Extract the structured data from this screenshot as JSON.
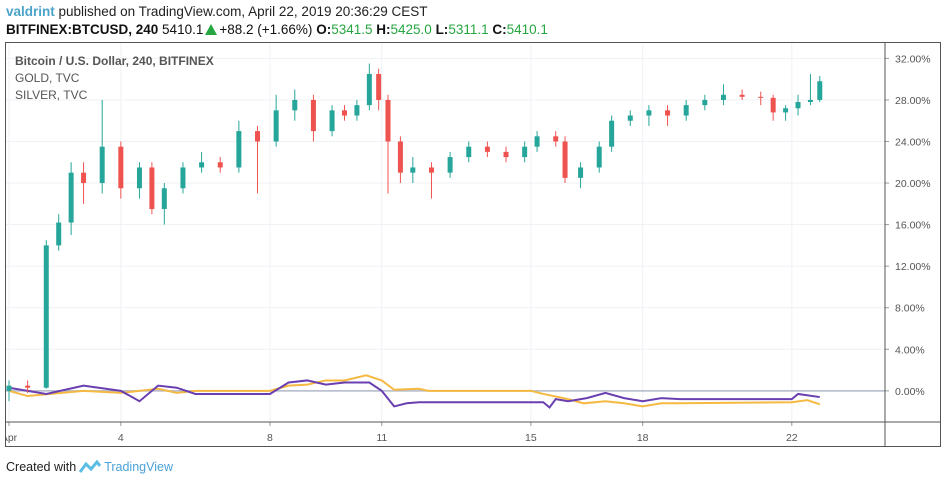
{
  "header": {
    "user": "valdrint",
    "published": "published on TradingView.com, April 22, 2019 20:36:29 CEST",
    "symbol": "BITFINEX:BTCUSD, 240",
    "last": "5410.1",
    "change": "+88.2 (+1.66%)",
    "o_label": "O:",
    "o": "5341.5",
    "h_label": "H:",
    "h": "5425.0",
    "l_label": "L:",
    "l": "5311.1",
    "c_label": "C:",
    "c": "5410.1"
  },
  "legend": {
    "main": "Bitcoin / U.S. Dollar, 240, BITFINEX",
    "s1": "GOLD, TVC",
    "s2": "SILVER, TVC"
  },
  "footer": {
    "created": "Created with",
    "brand": "TradingView"
  },
  "chart_data": {
    "type": "candlestick",
    "y_unit": "percent",
    "ylim": [
      -3,
      33
    ],
    "yticks": [
      "32.00%",
      "28.00%",
      "24.00%",
      "20.00%",
      "16.00%",
      "12.00%",
      "8.00%",
      "4.00%",
      "0.00%"
    ],
    "ytick_values": [
      32,
      28,
      24,
      20,
      16,
      12,
      8,
      4,
      0
    ],
    "xticks": [
      {
        "date": "2019-04-01",
        "label": "Apr"
      },
      {
        "date": "2019-04-04",
        "label": "4"
      },
      {
        "date": "2019-04-08",
        "label": "8"
      },
      {
        "date": "2019-04-11",
        "label": "11"
      },
      {
        "date": "2019-04-15",
        "label": "15"
      },
      {
        "date": "2019-04-18",
        "label": "18"
      },
      {
        "date": "2019-04-22",
        "label": "22"
      }
    ],
    "xlim": [
      "2019-04-01 00:00",
      "2019-04-24 12:00"
    ],
    "grid": true,
    "colors": {
      "up": "#26a69a",
      "down": "#ef5350",
      "gold": "#f5b942",
      "silver": "#6a3fb0",
      "zero": "#b0b8c8"
    },
    "candles": [
      [
        "2019-04-01 00:00",
        0,
        1,
        -1,
        0.5
      ],
      [
        "2019-04-01 12:00",
        0.5,
        1,
        -0.2,
        0.3
      ],
      [
        "2019-04-02 00:00",
        0.3,
        14.5,
        0.2,
        14
      ],
      [
        "2019-04-02 08:00",
        14,
        17,
        13.5,
        16.2
      ],
      [
        "2019-04-02 16:00",
        16.2,
        22,
        15,
        21
      ],
      [
        "2019-04-03 00:00",
        21,
        22,
        18,
        20
      ],
      [
        "2019-04-03 12:00",
        20,
        28,
        19,
        23.5
      ],
      [
        "2019-04-04 00:00",
        23.5,
        24,
        18.5,
        19.5
      ],
      [
        "2019-04-04 12:00",
        19.5,
        22,
        18.5,
        21.5
      ],
      [
        "2019-04-04 20:00",
        21.5,
        22,
        17,
        17.5
      ],
      [
        "2019-04-05 04:00",
        17.5,
        20,
        16,
        19.5
      ],
      [
        "2019-04-05 16:00",
        19.5,
        22,
        19,
        21.5
      ],
      [
        "2019-04-06 04:00",
        21.5,
        23,
        21,
        22
      ],
      [
        "2019-04-06 16:00",
        22,
        22.5,
        21,
        21.5
      ],
      [
        "2019-04-07 04:00",
        21.5,
        26,
        21,
        25
      ],
      [
        "2019-04-07 16:00",
        25,
        25.5,
        19,
        24
      ],
      [
        "2019-04-08 04:00",
        24,
        28.5,
        23.5,
        27
      ],
      [
        "2019-04-08 16:00",
        27,
        29,
        26,
        28
      ],
      [
        "2019-04-09 04:00",
        28,
        28.5,
        24,
        25
      ],
      [
        "2019-04-09 16:00",
        25,
        27.5,
        24.5,
        27
      ],
      [
        "2019-04-10 00:00",
        27,
        27.5,
        26,
        26.5
      ],
      [
        "2019-04-10 08:00",
        26.5,
        28,
        26,
        27.5
      ],
      [
        "2019-04-10 16:00",
        27.5,
        31.5,
        27,
        30.5
      ],
      [
        "2019-04-10 22:00",
        30.5,
        31,
        27,
        28
      ],
      [
        "2019-04-11 04:00",
        28,
        28.5,
        19,
        24
      ],
      [
        "2019-04-11 12:00",
        24,
        24.5,
        20,
        21
      ],
      [
        "2019-04-11 20:00",
        21,
        22.5,
        20,
        21.5
      ],
      [
        "2019-04-12 08:00",
        21.5,
        22,
        18.5,
        21
      ],
      [
        "2019-04-12 20:00",
        21,
        23,
        20.5,
        22.5
      ],
      [
        "2019-04-13 08:00",
        22.5,
        24,
        22,
        23.5
      ],
      [
        "2019-04-13 20:00",
        23.5,
        24,
        22.5,
        23
      ],
      [
        "2019-04-14 08:00",
        23,
        23.5,
        22,
        22.5
      ],
      [
        "2019-04-14 20:00",
        22.5,
        24,
        22,
        23.5
      ],
      [
        "2019-04-15 04:00",
        23.5,
        25,
        23,
        24.5
      ],
      [
        "2019-04-15 16:00",
        24.5,
        25,
        23.5,
        24
      ],
      [
        "2019-04-15 22:00",
        24,
        24.5,
        20,
        20.5
      ],
      [
        "2019-04-16 08:00",
        20.5,
        22,
        19.5,
        21.5
      ],
      [
        "2019-04-16 20:00",
        21.5,
        24,
        21,
        23.5
      ],
      [
        "2019-04-17 04:00",
        23.5,
        26.5,
        23,
        26
      ],
      [
        "2019-04-17 16:00",
        26,
        27,
        25.5,
        26.5
      ],
      [
        "2019-04-18 04:00",
        26.5,
        27.5,
        25.5,
        27
      ],
      [
        "2019-04-18 16:00",
        27,
        27.5,
        25.5,
        26.5
      ],
      [
        "2019-04-19 04:00",
        26.5,
        28,
        26,
        27.5
      ],
      [
        "2019-04-19 16:00",
        27.5,
        28.5,
        27,
        28
      ],
      [
        "2019-04-20 04:00",
        28,
        29.5,
        27.5,
        28.5
      ],
      [
        "2019-04-20 16:00",
        28.5,
        29,
        28,
        28.3
      ],
      [
        "2019-04-21 04:00",
        28.3,
        28.8,
        27.5,
        28.2
      ],
      [
        "2019-04-21 12:00",
        28.2,
        28.5,
        26,
        26.8
      ],
      [
        "2019-04-21 20:00",
        26.8,
        27.5,
        26,
        27.2
      ],
      [
        "2019-04-22 04:00",
        27.2,
        28.5,
        26.5,
        27.8
      ],
      [
        "2019-04-22 12:00",
        27.8,
        30.5,
        27.5,
        28
      ],
      [
        "2019-04-22 18:00",
        28,
        30.3,
        27.8,
        29.8
      ]
    ],
    "series": [
      {
        "name": "GOLD, TVC",
        "color": "#f5b942",
        "points": [
          [
            "2019-04-01 00:00",
            0
          ],
          [
            "2019-04-01 12:00",
            -0.5
          ],
          [
            "2019-04-03 00:00",
            0
          ],
          [
            "2019-04-04 00:00",
            -0.2
          ],
          [
            "2019-04-05 00:00",
            0.2
          ],
          [
            "2019-04-05 12:00",
            -0.2
          ],
          [
            "2019-04-06 00:00",
            0
          ],
          [
            "2019-04-08 00:00",
            0
          ],
          [
            "2019-04-08 12:00",
            0.5
          ],
          [
            "2019-04-09 00:00",
            0.6
          ],
          [
            "2019-04-09 12:00",
            1.0
          ],
          [
            "2019-04-10 00:00",
            1.0
          ],
          [
            "2019-04-10 14:00",
            1.5
          ],
          [
            "2019-04-11 00:00",
            1.0
          ],
          [
            "2019-04-11 08:00",
            0.1
          ],
          [
            "2019-04-12 00:00",
            0.2
          ],
          [
            "2019-04-12 06:00",
            0
          ],
          [
            "2019-04-15 00:00",
            0
          ],
          [
            "2019-04-15 08:00",
            -0.3
          ],
          [
            "2019-04-16 00:00",
            -0.8
          ],
          [
            "2019-04-16 10:00",
            -1.2
          ],
          [
            "2019-04-17 00:00",
            -1.0
          ],
          [
            "2019-04-17 12:00",
            -1.2
          ],
          [
            "2019-04-18 00:00",
            -1.5
          ],
          [
            "2019-04-18 12:00",
            -1.2
          ],
          [
            "2019-04-19 00:00",
            -1.2
          ],
          [
            "2019-04-22 00:00",
            -1.1
          ],
          [
            "2019-04-22 10:00",
            -0.9
          ],
          [
            "2019-04-22 18:00",
            -1.3
          ]
        ]
      },
      {
        "name": "SILVER, TVC",
        "color": "#6a3fb0",
        "points": [
          [
            "2019-04-01 00:00",
            0.3
          ],
          [
            "2019-04-02 00:00",
            -0.3
          ],
          [
            "2019-04-03 00:00",
            0.5
          ],
          [
            "2019-04-04 00:00",
            0
          ],
          [
            "2019-04-04 12:00",
            -1
          ],
          [
            "2019-04-05 00:00",
            0.5
          ],
          [
            "2019-04-05 12:00",
            0.3
          ],
          [
            "2019-04-06 00:00",
            -0.3
          ],
          [
            "2019-04-08 00:00",
            -0.3
          ],
          [
            "2019-04-08 12:00",
            0.8
          ],
          [
            "2019-04-09 00:00",
            1.0
          ],
          [
            "2019-04-09 12:00",
            0.6
          ],
          [
            "2019-04-10 00:00",
            0.8
          ],
          [
            "2019-04-10 16:00",
            0.8
          ],
          [
            "2019-04-11 00:00",
            0
          ],
          [
            "2019-04-11 08:00",
            -1.5
          ],
          [
            "2019-04-11 16:00",
            -1.2
          ],
          [
            "2019-04-12 00:00",
            -1.1
          ],
          [
            "2019-04-15 08:00",
            -1.1
          ],
          [
            "2019-04-15 12:00",
            -1.6
          ],
          [
            "2019-04-15 16:00",
            -0.8
          ],
          [
            "2019-04-16 00:00",
            -1.0
          ],
          [
            "2019-04-16 12:00",
            -0.7
          ],
          [
            "2019-04-17 00:00",
            -0.2
          ],
          [
            "2019-04-17 12:00",
            -0.7
          ],
          [
            "2019-04-18 00:00",
            -1.0
          ],
          [
            "2019-04-18 12:00",
            -0.7
          ],
          [
            "2019-04-19 00:00",
            -0.8
          ],
          [
            "2019-04-22 00:00",
            -0.8
          ],
          [
            "2019-04-22 04:00",
            -0.3
          ],
          [
            "2019-04-22 18:00",
            -0.6
          ]
        ]
      }
    ]
  }
}
